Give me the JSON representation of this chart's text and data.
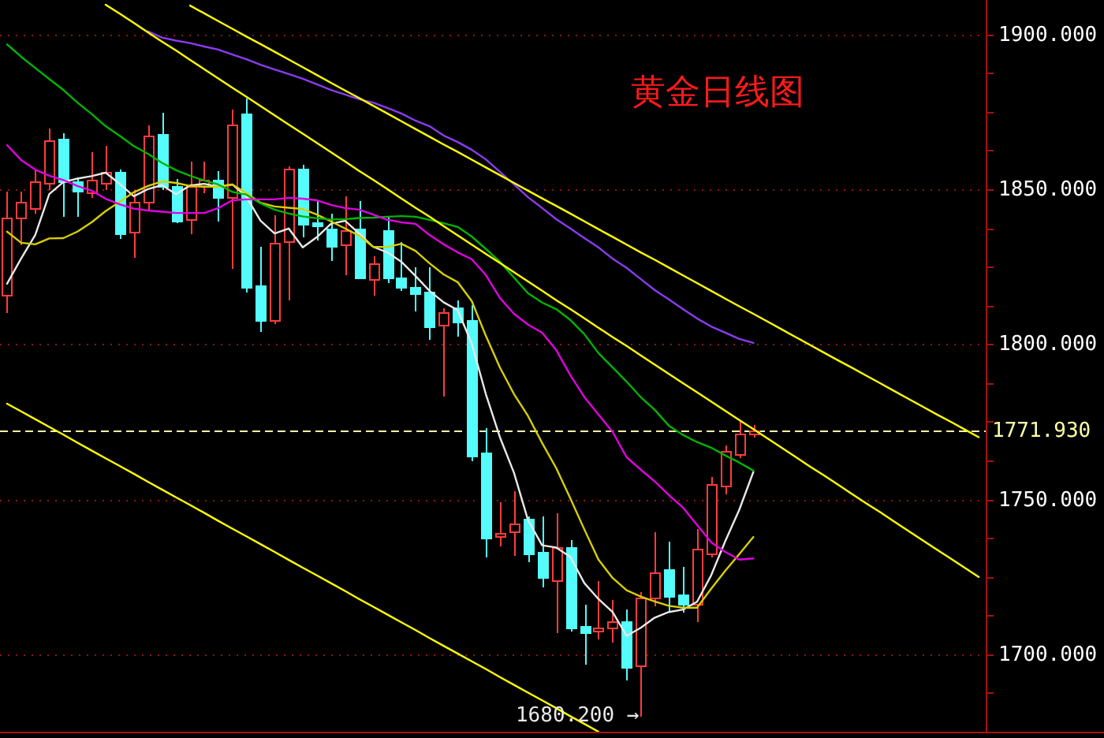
{
  "chart_data": {
    "type": "candlestick",
    "title": "黄金日线图",
    "categories": [
      null,
      null,
      null,
      null,
      null,
      null,
      null,
      null,
      null,
      null,
      null,
      null,
      null,
      null,
      null,
      null,
      null,
      null,
      null,
      null,
      null,
      null,
      null,
      null,
      null,
      null,
      null,
      null,
      null,
      null,
      null,
      null,
      null,
      null,
      null,
      null,
      null,
      null,
      null,
      null,
      null,
      null,
      null,
      null,
      null,
      null,
      null,
      null,
      null,
      null,
      null,
      null,
      null,
      null,
      null,
      null,
      null,
      null,
      null,
      null,
      null,
      null,
      null,
      null,
      null,
      null,
      null,
      null,
      null,
      null
    ],
    "ohlc": [
      [
        1816.1,
        1849.5,
        1810.2,
        1840.7
      ],
      [
        1840.7,
        1849.5,
        1832.2,
        1845.8
      ],
      [
        1844.0,
        1856.4,
        1842.3,
        1852.5
      ],
      [
        1852.2,
        1869.8,
        1850.0,
        1865.6
      ],
      [
        1866.4,
        1868.1,
        1841.5,
        1852.5
      ],
      [
        1852.5,
        1853.9,
        1841.5,
        1849.6
      ],
      [
        1849.1,
        1862.2,
        1847.4,
        1852.9
      ],
      [
        1852.2,
        1864.1,
        1850.0,
        1855.6
      ],
      [
        1855.6,
        1856.7,
        1834.2,
        1835.9
      ],
      [
        1836.4,
        1850.0,
        1828.0,
        1845.8
      ],
      [
        1845.8,
        1870.8,
        1843.2,
        1867.4
      ],
      [
        1867.9,
        1874.7,
        1850.0,
        1850.8
      ],
      [
        1851.1,
        1853.4,
        1839.3,
        1839.8
      ],
      [
        1840.2,
        1859.3,
        1835.9,
        1850.8
      ],
      [
        1850.8,
        1859.3,
        1849.0,
        1852.9
      ],
      [
        1852.9,
        1855.9,
        1839.8,
        1847.4
      ],
      [
        1847.4,
        1875.8,
        1824.6,
        1870.7
      ],
      [
        1874.2,
        1879.6,
        1816.9,
        1818.6
      ],
      [
        1819.0,
        1831.7,
        1804.2,
        1807.9
      ],
      [
        1807.6,
        1841.8,
        1806.5,
        1832.5
      ],
      [
        1833.0,
        1857.6,
        1814.4,
        1856.4
      ],
      [
        1856.4,
        1858.1,
        1834.7,
        1838.9
      ],
      [
        1839.5,
        1846.6,
        1833.9,
        1838.1
      ],
      [
        1837.3,
        1842.3,
        1827.1,
        1831.8
      ],
      [
        1832.0,
        1847.8,
        1822.4,
        1836.8
      ],
      [
        1837.3,
        1846.6,
        1821.7,
        1821.7
      ],
      [
        1821.1,
        1828.6,
        1816.1,
        1825.9
      ],
      [
        1836.8,
        1841.2,
        1819.8,
        1821.7
      ],
      [
        1821.5,
        1833.2,
        1817.4,
        1818.6
      ],
      [
        1818.3,
        1824.9,
        1811.0,
        1816.6
      ],
      [
        1816.9,
        1824.9,
        1801.7,
        1805.9
      ],
      [
        1806.4,
        1811.8,
        1783.5,
        1810.2
      ],
      [
        1811.8,
        1814.4,
        1802.5,
        1807.1
      ],
      [
        1807.9,
        1812.7,
        1762.7,
        1763.9
      ],
      [
        1765.1,
        1773.2,
        1731.7,
        1737.6
      ],
      [
        1738.0,
        1749.2,
        1735.2,
        1739.0
      ],
      [
        1739.8,
        1752.9,
        1732.2,
        1742.0
      ],
      [
        1743.6,
        1744.6,
        1730.0,
        1732.5
      ],
      [
        1733.0,
        1744.6,
        1722.0,
        1724.9
      ],
      [
        1724.0,
        1745.8,
        1706.8,
        1734.7
      ],
      [
        1734.4,
        1736.8,
        1707.5,
        1708.8
      ],
      [
        1709.0,
        1716.4,
        1697.1,
        1706.8
      ],
      [
        1707.3,
        1723.7,
        1705.1,
        1708.5
      ],
      [
        1708.5,
        1717.8,
        1704.2,
        1710.7
      ],
      [
        1710.7,
        1714.7,
        1692.0,
        1695.8
      ],
      [
        1696.6,
        1720.3,
        1680.2,
        1718.1
      ],
      [
        1718.1,
        1739.8,
        1715.8,
        1726.3
      ],
      [
        1727.4,
        1736.4,
        1714.4,
        1718.5
      ],
      [
        1719.0,
        1728.3,
        1713.6,
        1716.4
      ],
      [
        1716.4,
        1740.7,
        1710.7,
        1733.9
      ],
      [
        1732.7,
        1757.6,
        1731.5,
        1754.8
      ],
      [
        1754.5,
        1767.8,
        1751.7,
        1765.6
      ],
      [
        1764.7,
        1775.1,
        1763.5,
        1771.2
      ],
      [
        1770.9,
        1774.1,
        1770.0,
        1771.9
      ],
      null,
      null,
      null,
      null,
      null,
      null,
      null,
      null,
      null,
      null,
      null,
      null,
      null,
      null,
      null,
      null
    ],
    "colors": [
      "#ff3c3c",
      "#ff3c3c",
      "#ff3c3c",
      "#ff3c3c",
      "#54fcfc",
      "#54fcfc",
      "#ff3c3c",
      "#ff3c3c",
      "#54fcfc",
      "#ff3c3c",
      "#ff3c3c",
      "#54fcfc",
      "#54fcfc",
      "#ff3c3c",
      "#ff3c3c",
      "#54fcfc",
      "#ff3c3c",
      "#54fcfc",
      "#54fcfc",
      "#ff3c3c",
      "#ff3c3c",
      "#54fcfc",
      "#54fcfc",
      "#54fcfc",
      "#ff3c3c",
      "#54fcfc",
      "#ff3c3c",
      "#54fcfc",
      "#54fcfc",
      "#54fcfc",
      "#54fcfc",
      "#ff3c3c",
      "#54fcfc",
      "#54fcfc",
      "#54fcfc",
      "#ff3c3c",
      "#ff3c3c",
      "#54fcfc",
      "#54fcfc",
      "#ff3c3c",
      "#54fcfc",
      "#54fcfc",
      "#ff3c3c",
      "#ff3c3c",
      "#54fcfc",
      "#ff3c3c",
      "#ff3c3c",
      "#54fcfc",
      "#54fcfc",
      "#ff3c3c",
      "#ff3c3c",
      "#ff3c3c",
      "#ff3c3c",
      "#ff3c3c",
      null,
      null,
      null,
      null,
      null,
      null,
      null,
      null,
      null,
      null,
      null,
      null,
      null,
      null,
      null,
      null
    ],
    "series": [
      {
        "type": "line",
        "color": "#e8e8e8",
        "values": [
          1819.5,
          1827.6,
          1835.2,
          1848.4,
          1852.3,
          1853.4,
          1854.2,
          1855.3,
          1851.7,
          1847.7,
          1850.0,
          1851.3,
          1848.4,
          1851.2,
          1851.7,
          1850.8,
          1851.5,
          1847.5,
          1839.8,
          1835.7,
          1837.3,
          1831.2,
          1834.5,
          1838.8,
          1839.8,
          1835.7,
          1831.4,
          1829.6,
          1826.6,
          1822.0,
          1817.2,
          1813.5,
          1811.0,
          1800.2,
          1783.9,
          1770.0,
          1758.5,
          1743.2,
          1735.1,
          1734.4,
          1731.4,
          1722.9,
          1717.8,
          1713.6,
          1705.9,
          1708.5,
          1711.8,
          1713.6,
          1714.4,
          1716.9,
          1725.4,
          1736.4,
          1746.6,
          1758.8,
          null,
          null,
          null,
          null,
          null,
          null,
          null,
          null,
          null,
          null,
          null,
          null,
          null,
          null,
          null,
          null
        ]
      },
      {
        "type": "line",
        "color": "#d8cf00",
        "values": [
          1836.3,
          1832.7,
          1832.2,
          1834.1,
          1834.2,
          1836.3,
          1839.3,
          1842.9,
          1845.9,
          1849.0,
          1851.0,
          1852.5,
          1852.0,
          1851.0,
          1850.8,
          1850.8,
          1851.5,
          1848.7,
          1845.6,
          1844.4,
          1844.0,
          1843.6,
          1841.8,
          1839.6,
          1837.3,
          1835.0,
          1831.4,
          1831.3,
          1832.4,
          1830.1,
          1826.1,
          1822.5,
          1820.0,
          1813.9,
          1802.7,
          1792.5,
          1783.9,
          1776.8,
          1768.1,
          1760.0,
          1750.3,
          1740.2,
          1730.5,
          1724.6,
          1720.6,
          1718.6,
          1717.0,
          1715.6,
          1715.0,
          1715.0,
          1721.1,
          1726.9,
          1732.3,
          1737.8,
          null,
          null,
          null,
          null,
          null,
          null,
          null,
          null,
          null,
          null,
          null,
          null,
          null,
          null,
          null,
          null
        ]
      },
      {
        "type": "line",
        "color": "#00b400",
        "values": [
          1896.7,
          1892.7,
          1889.1,
          1885.5,
          1882.0,
          1877.9,
          1874.3,
          1870.3,
          1867.2,
          1863.9,
          1861.4,
          1858.5,
          1856.1,
          1854.3,
          1852.8,
          1851.5,
          1849.1,
          1848.2,
          1845.4,
          1843.4,
          1842.1,
          1841.2,
          1840.6,
          1840.2,
          1840.3,
          1840.7,
          1840.8,
          1841.1,
          1841.3,
          1841.1,
          1840.1,
          1839.0,
          1837.8,
          1834.7,
          1830.7,
          1826.6,
          1821.5,
          1816.4,
          1813.4,
          1811.3,
          1807.8,
          1803.2,
          1797.1,
          1792.5,
          1787.9,
          1782.9,
          1778.8,
          1773.7,
          1770.7,
          1768.4,
          1766.6,
          1764.1,
          1761.8,
          1759.2,
          null,
          null,
          null,
          null,
          null,
          null,
          null,
          null,
          null,
          null,
          null,
          null,
          null,
          null,
          null,
          null
        ]
      },
      {
        "type": "line",
        "color": "#e000e0",
        "values": [
          1864.2,
          1859.4,
          1856.3,
          1854.3,
          1852.9,
          1851.0,
          1849.5,
          1846.9,
          1845.1,
          1843.7,
          1843.1,
          1842.7,
          1842.3,
          1842.3,
          1842.3,
          1843.9,
          1846.4,
          1846.7,
          1846.7,
          1846.7,
          1847.2,
          1846.9,
          1846.4,
          1844.9,
          1843.9,
          1843.4,
          1841.8,
          1840.1,
          1839.3,
          1838.8,
          1835.2,
          1832.2,
          1829.6,
          1827.4,
          1822.3,
          1814.9,
          1809.8,
          1806.3,
          1803.7,
          1798.1,
          1790.0,
          1782.9,
          1777.3,
          1771.7,
          1763.5,
          1759.5,
          1755.7,
          1751.3,
          1747.3,
          1741.7,
          1736.1,
          1733.0,
          1730.5,
          1730.9,
          null,
          null,
          null,
          null,
          null,
          null,
          null,
          null,
          null,
          null,
          null,
          null,
          null,
          null,
          null,
          null
        ]
      },
      {
        "type": "line",
        "color": "#8a3cf0",
        "values": [
          null,
          null,
          null,
          null,
          null,
          null,
          null,
          null,
          null,
          null,
          1900.9,
          1898.9,
          1897.9,
          1897.1,
          1896.0,
          1895.0,
          1893.4,
          1891.9,
          1890.1,
          1888.6,
          1887.1,
          1885.6,
          1883.8,
          1882.0,
          1880.5,
          1879.0,
          1877.9,
          1876.2,
          1874.4,
          1872.1,
          1870.3,
          1867.3,
          1865.2,
          1862.7,
          1859.6,
          1855.6,
          1851.5,
          1847.4,
          1843.9,
          1840.3,
          1837.3,
          1834.2,
          1831.2,
          1827.6,
          1824.6,
          1821.0,
          1817.4,
          1814.4,
          1811.3,
          1808.3,
          1805.7,
          1803.7,
          1801.7,
          1800.4,
          null,
          null,
          null,
          null,
          null,
          null,
          null,
          null,
          null,
          null,
          null,
          null,
          null,
          null,
          null,
          null
        ]
      },
      {
        "type": "line",
        "color": "#ffff00",
        "values": [
          null,
          null,
          null,
          null,
          null,
          null,
          null,
          null,
          null,
          null,
          null,
          null,
          null,
          1909.2,
          1906.7,
          1904.2,
          1901.7,
          1899.2,
          1896.8,
          1894.3,
          1891.8,
          1889.3,
          1886.8,
          1884.3,
          1881.8,
          1879.4,
          1876.9,
          1874.4,
          1871.9,
          1869.4,
          1866.9,
          1864.4,
          1862.0,
          1859.5,
          1857.0,
          1854.5,
          1852.0,
          1849.5,
          1847.0,
          1844.6,
          1842.1,
          1839.6,
          1837.1,
          1834.6,
          1832.1,
          1829.6,
          1827.2,
          1824.7,
          1822.2,
          1819.7,
          1817.2,
          1814.7,
          1812.2,
          1809.8,
          1807.3,
          1804.8,
          1802.3,
          1799.8,
          1797.3,
          1794.8,
          1792.4,
          1789.9,
          1787.4,
          1784.9,
          1782.4,
          1779.9,
          1777.4,
          1775.0,
          1772.5,
          1770.0
        ]
      },
      {
        "type": "line",
        "color": "#ffff00",
        "values": [
          null,
          null,
          null,
          null,
          null,
          null,
          null,
          1909.5,
          1906.6,
          1903.6,
          1900.6,
          1897.6,
          1894.7,
          1891.7,
          1888.7,
          1885.7,
          1882.7,
          1879.8,
          1876.8,
          1873.8,
          1870.8,
          1867.9,
          1864.9,
          1861.9,
          1858.9,
          1855.9,
          1853.0,
          1850.0,
          1847.0,
          1844.0,
          1841.1,
          1838.1,
          1835.1,
          1832.1,
          1829.1,
          1826.2,
          1823.2,
          1820.2,
          1817.2,
          1814.2,
          1811.3,
          1808.3,
          1805.3,
          1802.3,
          1799.4,
          1796.4,
          1793.4,
          1790.4,
          1787.4,
          1784.5,
          1781.5,
          1778.5,
          1775.5,
          1772.6,
          1769.6,
          1766.6,
          1763.6,
          1760.6,
          1757.7,
          1754.7,
          1751.7,
          1748.7,
          1745.8,
          1742.8,
          1739.8,
          1736.8,
          1733.8,
          1730.9,
          1727.9,
          1724.9
        ]
      },
      {
        "type": "line",
        "color": "#ffff00",
        "values": [
          1780.8,
          1778.3,
          1775.8,
          1773.3,
          1770.8,
          1768.2,
          1765.7,
          1763.2,
          1760.7,
          1758.2,
          1755.6,
          1753.1,
          1750.6,
          1748.1,
          1745.6,
          1743.0,
          1740.5,
          1738.0,
          1735.5,
          1733.0,
          1730.4,
          1727.9,
          1725.4,
          1722.9,
          1720.4,
          1717.8,
          1715.3,
          1712.8,
          1710.3,
          1707.8,
          1705.2,
          1702.7,
          1700.2,
          1697.7,
          1695.2,
          1692.6,
          1690.1,
          1687.6,
          1685.1,
          1682.6,
          1680.0,
          1677.5,
          1675.0,
          null,
          null,
          null,
          null,
          null,
          null,
          null,
          null,
          null,
          null,
          null,
          null,
          null,
          null,
          null,
          null,
          null,
          null,
          null,
          null,
          null,
          null,
          null,
          null,
          null,
          null,
          null
        ]
      }
    ],
    "ylim": [
      1675,
      1911
    ],
    "yticks": [
      {
        "value": 1687.5,
        "label": null
      },
      {
        "value": 1700,
        "label": "1700.000"
      },
      {
        "value": 1712.5,
        "label": null
      },
      {
        "value": 1725,
        "label": null
      },
      {
        "value": 1737.5,
        "label": null
      },
      {
        "value": 1750,
        "label": "1750.000"
      },
      {
        "value": 1762.5,
        "label": null
      },
      {
        "value": 1775,
        "label": null
      },
      {
        "value": 1787.5,
        "label": null
      },
      {
        "value": 1800,
        "label": "1800.000"
      },
      {
        "value": 1812.5,
        "label": null
      },
      {
        "value": 1825,
        "label": null
      },
      {
        "value": 1837.5,
        "label": null
      },
      {
        "value": 1850,
        "label": "1850.000"
      },
      {
        "value": 1862.5,
        "label": null
      },
      {
        "value": 1875,
        "label": null
      },
      {
        "value": 1887.5,
        "label": null
      },
      {
        "value": 1900,
        "label": "1900.000"
      }
    ],
    "ref_lines": [
      {
        "axis": "y",
        "value": 1771.93,
        "label": "1771.930",
        "color": "#ffffa8",
        "line_style": "dashed"
      }
    ],
    "annotations": [
      {
        "text": "1680.200 →",
        "y": 1680.2
      }
    ],
    "grid": "y",
    "tick_labels": "y"
  }
}
